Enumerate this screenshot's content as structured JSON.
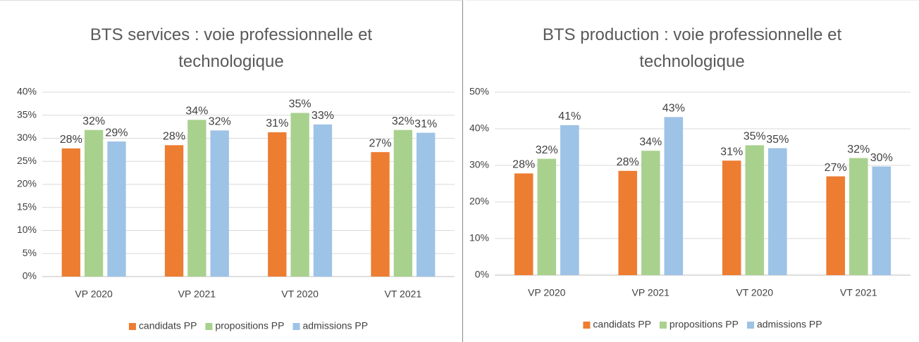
{
  "chart_data": [
    {
      "type": "bar",
      "title": "BTS services : voie professionnelle et technologique",
      "categories": [
        "VP 2020",
        "VP 2021",
        "VT 2020",
        "VT 2021"
      ],
      "series": [
        {
          "name": "candidats PP",
          "color": "#ed7d31",
          "values": [
            27.8,
            28.5,
            31.3,
            27.0
          ],
          "value_labels": [
            "28%",
            "28%",
            "31%",
            "27%"
          ]
        },
        {
          "name": "propositions PP",
          "color": "#a9d18e",
          "values": [
            31.8,
            34.0,
            35.5,
            31.8
          ],
          "value_labels": [
            "32%",
            "34%",
            "35%",
            "32%"
          ]
        },
        {
          "name": "admissions PP",
          "color": "#9dc3e6",
          "values": [
            29.3,
            31.7,
            33.0,
            31.2
          ],
          "value_labels": [
            "29%",
            "32%",
            "33%",
            "31%"
          ]
        }
      ],
      "ylim": [
        0,
        40
      ],
      "yticks": [
        {
          "value": 0,
          "label": "0%"
        },
        {
          "value": 5,
          "label": "5%"
        },
        {
          "value": 10,
          "label": "10%"
        },
        {
          "value": 15,
          "label": "15%"
        },
        {
          "value": 20,
          "label": "20%"
        },
        {
          "value": 25,
          "label": "25%"
        },
        {
          "value": 30,
          "label": "30%"
        },
        {
          "value": 35,
          "label": "35%"
        },
        {
          "value": 40,
          "label": "40%"
        }
      ],
      "grid": true,
      "legend": "bottom"
    },
    {
      "type": "bar",
      "title": "BTS production : voie professionnelle et technologique",
      "categories": [
        "VP 2020",
        "VP 2021",
        "VT 2020",
        "VT 2021"
      ],
      "series": [
        {
          "name": "candidats PP",
          "color": "#ed7d31",
          "values": [
            27.8,
            28.5,
            31.3,
            27.0
          ],
          "value_labels": [
            "28%",
            "28%",
            "31%",
            "27%"
          ]
        },
        {
          "name": "propositions PP",
          "color": "#a9d18e",
          "values": [
            31.8,
            34.0,
            35.5,
            32.0
          ],
          "value_labels": [
            "32%",
            "34%",
            "35%",
            "32%"
          ]
        },
        {
          "name": "admissions PP",
          "color": "#9dc3e6",
          "values": [
            41.0,
            43.2,
            34.7,
            29.7
          ],
          "value_labels": [
            "41%",
            "43%",
            "35%",
            "30%"
          ]
        }
      ],
      "ylim": [
        0,
        50
      ],
      "yticks": [
        {
          "value": 0,
          "label": "0%"
        },
        {
          "value": 10,
          "label": "10%"
        },
        {
          "value": 20,
          "label": "20%"
        },
        {
          "value": 30,
          "label": "30%"
        },
        {
          "value": 40,
          "label": "40%"
        },
        {
          "value": 50,
          "label": "50%"
        }
      ],
      "grid": true,
      "legend": "bottom"
    }
  ]
}
